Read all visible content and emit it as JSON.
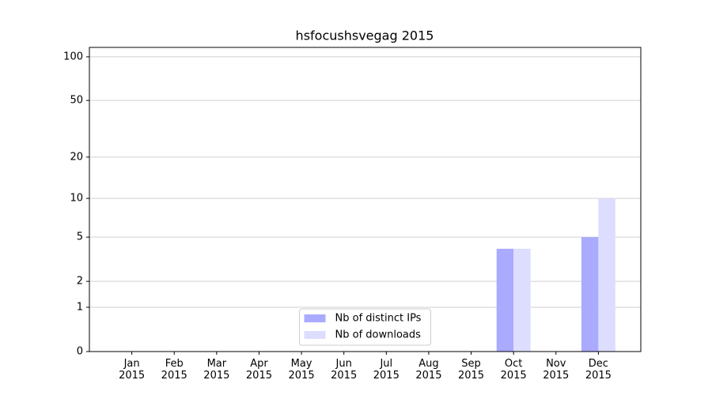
{
  "chart_data": {
    "type": "bar",
    "title": "hsfocushsvegag 2015",
    "categories": [
      "Jan\n2015",
      "Feb\n2015",
      "Mar\n2015",
      "Apr\n2015",
      "May\n2015",
      "Jun\n2015",
      "Jul\n2015",
      "Aug\n2015",
      "Sep\n2015",
      "Oct\n2015",
      "Nov\n2015",
      "Dec\n2015"
    ],
    "series": [
      {
        "name": "Nb of distinct IPs",
        "color": "#aaaaff",
        "values": [
          0,
          0,
          0,
          0,
          0,
          0,
          0,
          0,
          0,
          4,
          0,
          5
        ]
      },
      {
        "name": "Nb of downloads",
        "color": "#ddddff",
        "values": [
          0,
          0,
          0,
          0,
          0,
          0,
          0,
          0,
          0,
          4,
          0,
          10
        ]
      }
    ],
    "yscale": "log1p",
    "ylim": [
      0,
      116
    ],
    "yticks": [
      0,
      1,
      2,
      5,
      10,
      20,
      50,
      100
    ],
    "grid": true,
    "legend": "lower center"
  }
}
